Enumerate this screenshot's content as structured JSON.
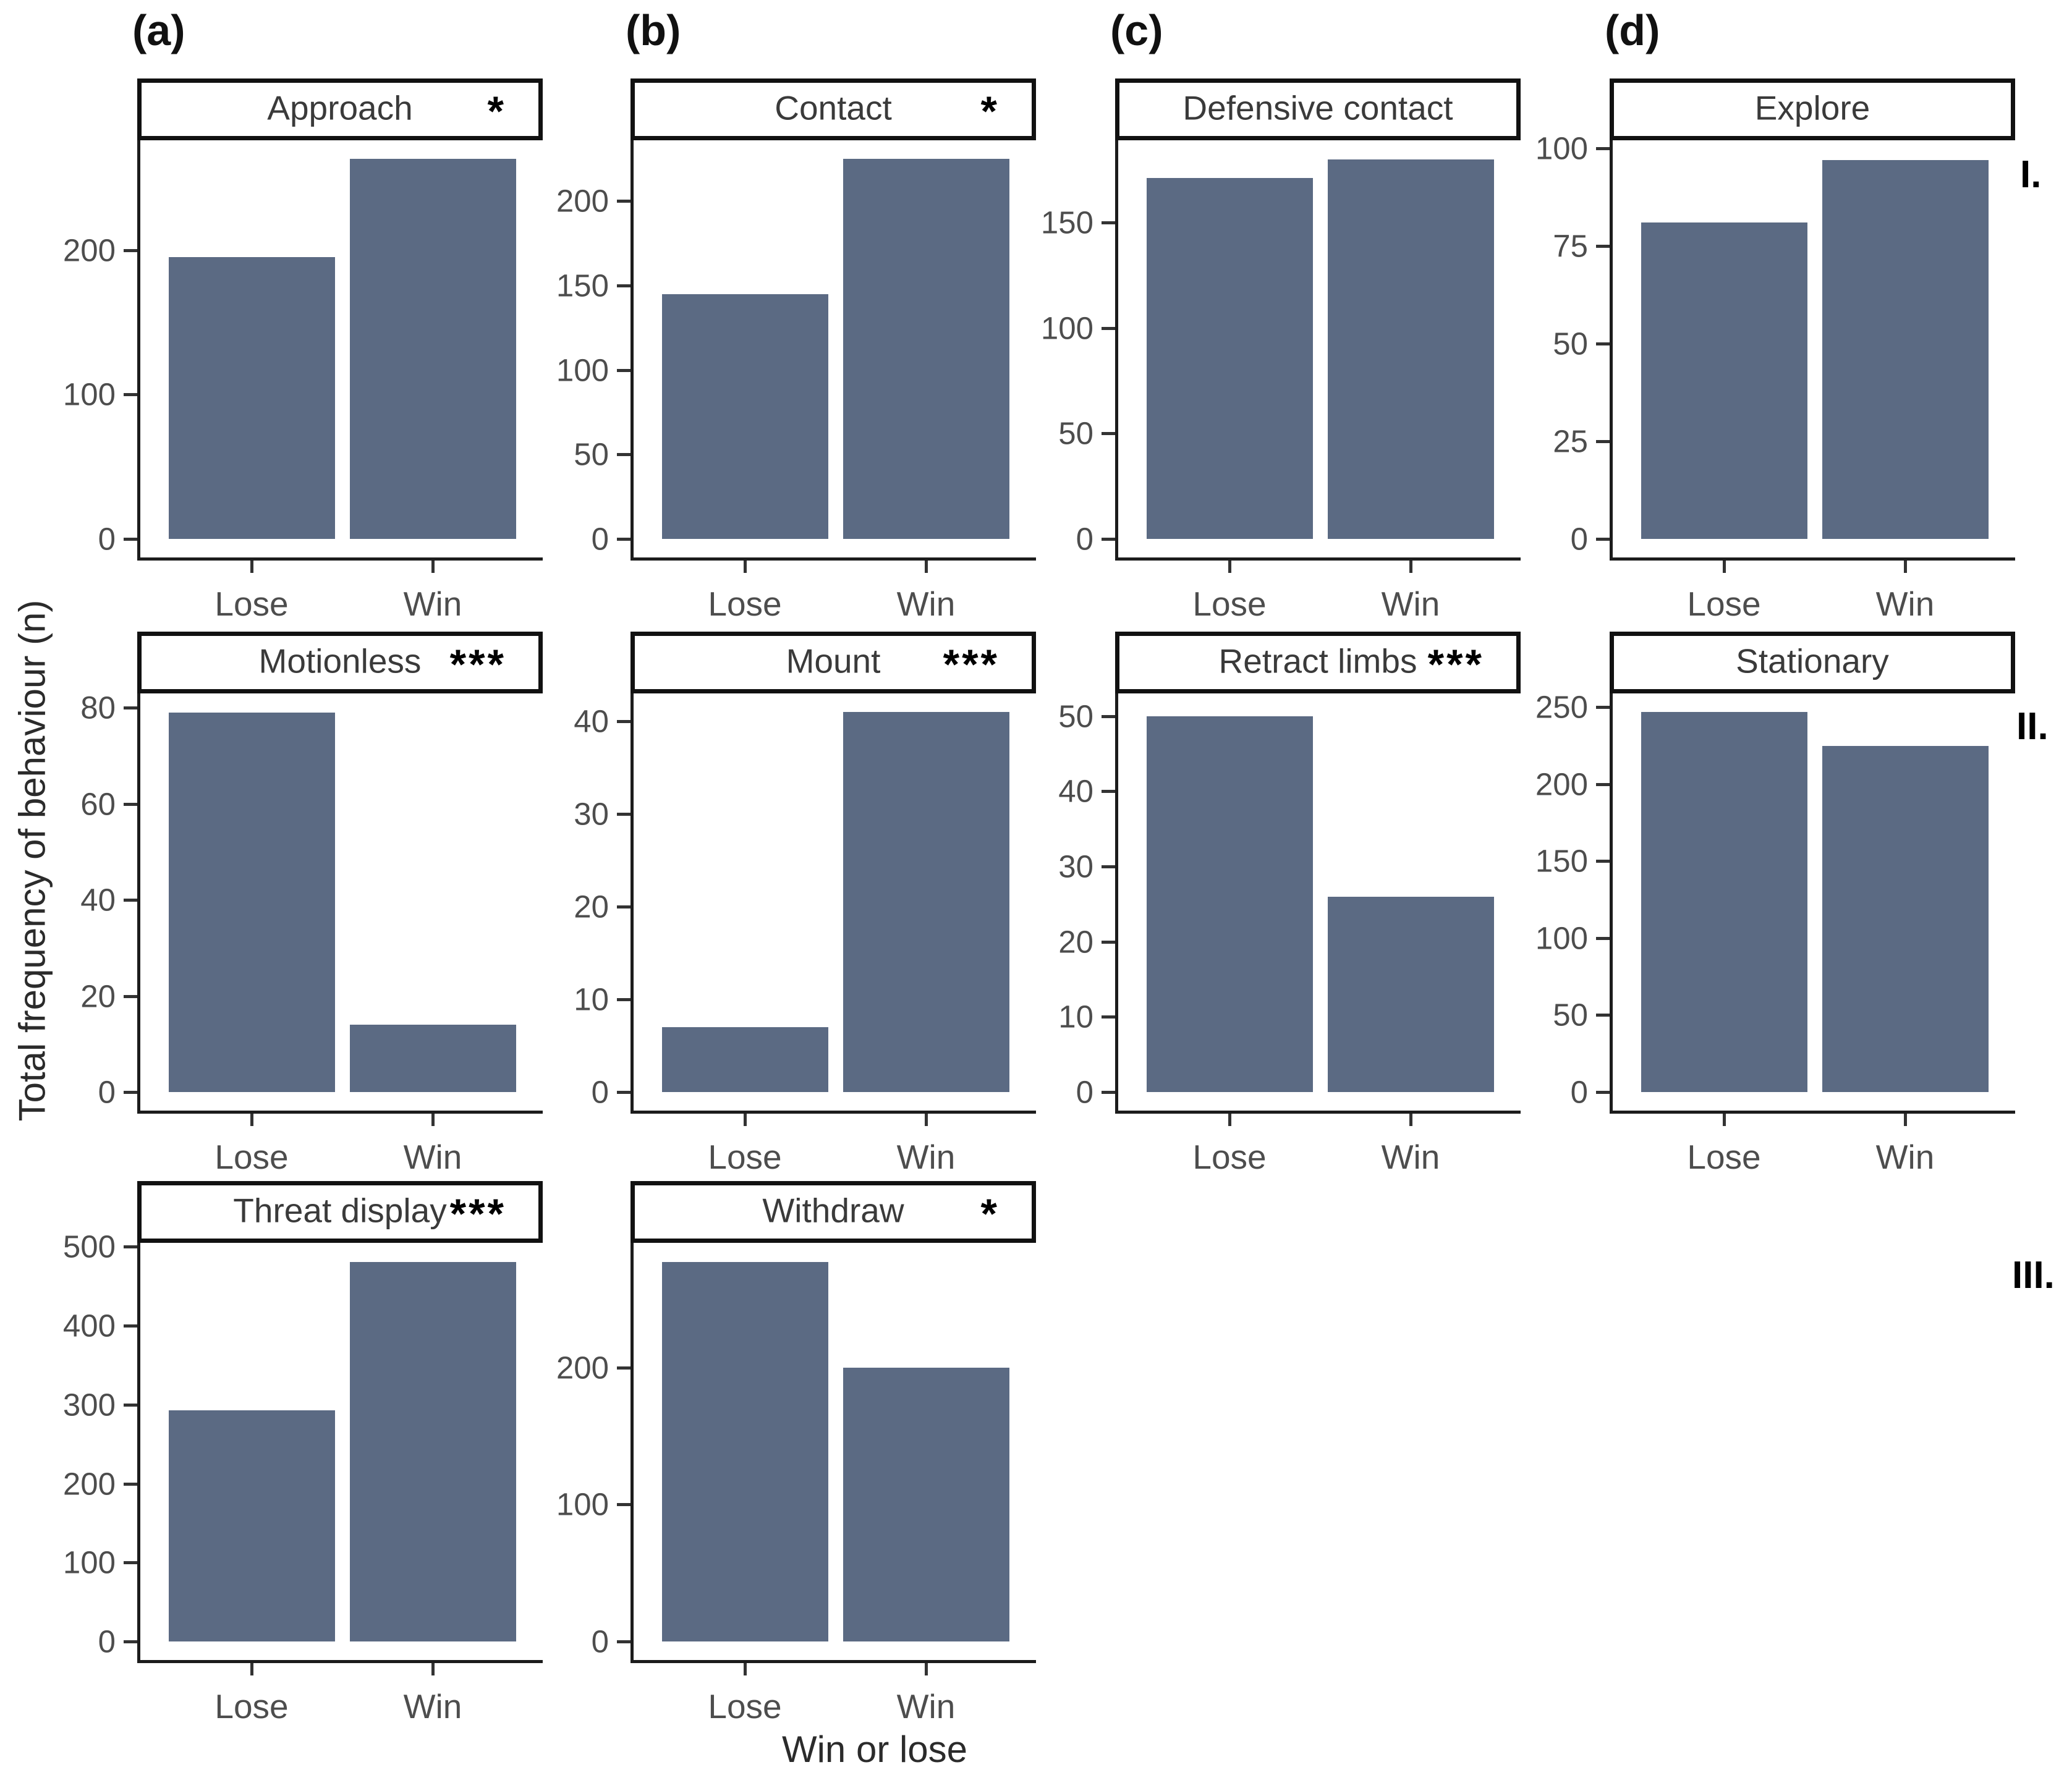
{
  "figure": {
    "y_axis_title": "Total frequency of behaviour (n)",
    "x_axis_title": "Win or lose",
    "row_labels": [
      "I.",
      "II.",
      "III."
    ],
    "colors": {
      "bar": "#5b6a83",
      "axis_line": "#1c1c1c",
      "axis_text": "#4d4d4d",
      "strip_text": "#3a3a3a",
      "significance": "#000000"
    }
  },
  "chart_data": [
    {
      "type": "bar",
      "tag": "(a)",
      "row": 1,
      "col": 1,
      "title": "Approach",
      "significance": "*",
      "categories": [
        "Lose",
        "Win"
      ],
      "values": [
        195,
        263
      ],
      "yticks": [
        0,
        100,
        200
      ],
      "ylim": [
        0,
        276
      ]
    },
    {
      "type": "bar",
      "tag": "(b)",
      "row": 1,
      "col": 2,
      "title": "Contact",
      "significance": "*",
      "categories": [
        "Lose",
        "Win"
      ],
      "values": [
        145,
        225
      ],
      "yticks": [
        0,
        50,
        100,
        150,
        200
      ],
      "ylim": [
        0,
        236
      ]
    },
    {
      "type": "bar",
      "tag": "(c)",
      "row": 1,
      "col": 3,
      "title": "Defensive contact",
      "significance": "",
      "categories": [
        "Lose",
        "Win"
      ],
      "values": [
        171,
        180
      ],
      "yticks": [
        0,
        50,
        100,
        150
      ],
      "ylim": [
        0,
        189
      ]
    },
    {
      "type": "bar",
      "tag": "(d)",
      "row": 1,
      "col": 4,
      "title": "Explore",
      "significance": "",
      "categories": [
        "Lose",
        "Win"
      ],
      "values": [
        81,
        97
      ],
      "yticks": [
        0,
        25,
        50,
        75,
        100
      ],
      "ylim": [
        0,
        102
      ]
    },
    {
      "type": "bar",
      "tag": "",
      "row": 2,
      "col": 1,
      "title": "Motionless",
      "significance": "***",
      "categories": [
        "Lose",
        "Win"
      ],
      "values": [
        79,
        14
      ],
      "yticks": [
        0,
        20,
        40,
        60,
        80
      ],
      "ylim": [
        0,
        83
      ]
    },
    {
      "type": "bar",
      "tag": "",
      "row": 2,
      "col": 2,
      "title": "Mount",
      "significance": "***",
      "categories": [
        "Lose",
        "Win"
      ],
      "values": [
        7,
        41
      ],
      "yticks": [
        0,
        10,
        20,
        30,
        40
      ],
      "ylim": [
        0,
        43
      ]
    },
    {
      "type": "bar",
      "tag": "",
      "row": 2,
      "col": 3,
      "title": "Retract limbs",
      "significance": "***",
      "categories": [
        "Lose",
        "Win"
      ],
      "values": [
        50,
        26
      ],
      "yticks": [
        0,
        10,
        20,
        30,
        40,
        50
      ],
      "ylim": [
        0,
        53
      ]
    },
    {
      "type": "bar",
      "tag": "",
      "row": 2,
      "col": 4,
      "title": "Stationary",
      "significance": "",
      "categories": [
        "Lose",
        "Win"
      ],
      "values": [
        247,
        225
      ],
      "yticks": [
        0,
        50,
        100,
        150,
        200,
        250
      ],
      "ylim": [
        0,
        259
      ]
    },
    {
      "type": "bar",
      "tag": "",
      "row": 3,
      "col": 1,
      "title": "Threat display",
      "significance": "***",
      "categories": [
        "Lose",
        "Win"
      ],
      "values": [
        293,
        481
      ],
      "yticks": [
        0,
        100,
        200,
        300,
        400,
        500
      ],
      "ylim": [
        0,
        505
      ]
    },
    {
      "type": "bar",
      "tag": "",
      "row": 3,
      "col": 2,
      "title": "Withdraw",
      "significance": "*",
      "categories": [
        "Lose",
        "Win"
      ],
      "values": [
        277,
        200
      ],
      "yticks": [
        0,
        100,
        200
      ],
      "ylim": [
        0,
        291
      ]
    }
  ]
}
